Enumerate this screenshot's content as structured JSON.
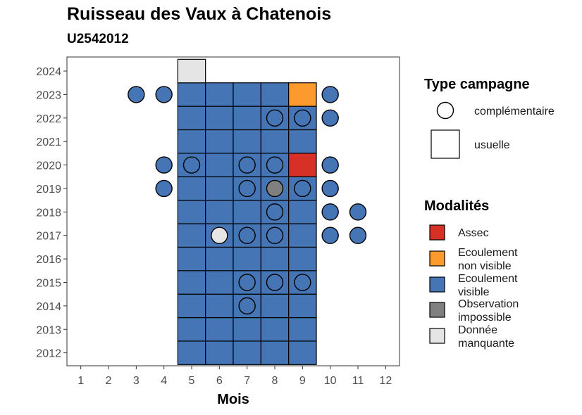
{
  "title": "Ruisseau des Vaux à Chatenois",
  "subtitle": "U2542012",
  "chart_data": {
    "type": "heatmap",
    "title": "Ruisseau des Vaux à Chatenois",
    "subtitle": "U2542012",
    "xlabel": "Mois",
    "ylabel": "",
    "x_ticks": [
      "1",
      "2",
      "3",
      "4",
      "5",
      "6",
      "7",
      "8",
      "9",
      "10",
      "11",
      "12"
    ],
    "y_ticks": [
      "2012",
      "2013",
      "2014",
      "2015",
      "2016",
      "2017",
      "2018",
      "2019",
      "2020",
      "2021",
      "2022",
      "2023",
      "2024"
    ],
    "xlim": [
      0.5,
      12.5
    ],
    "ylim": [
      2011.45,
      2024.6
    ],
    "modalities": [
      {
        "key": "assec",
        "label": "Assec",
        "color": "#d73027"
      },
      {
        "key": "ecoulement_non_visible",
        "label": "Ecoulement non visible",
        "color": "#fd9a2e"
      },
      {
        "key": "ecoulement_visible",
        "label": "Ecoulement visible",
        "color": "#4575b4"
      },
      {
        "key": "observation_impossible",
        "label": "Observation impossible",
        "color": "#808080"
      },
      {
        "key": "donnee_manquante",
        "label": "Donnée manquante",
        "color": "#e5e5e5"
      }
    ],
    "campaign_types": [
      {
        "key": "complementaire",
        "label": "complémentaire",
        "shape": "circle"
      },
      {
        "key": "usuelle",
        "label": "usuelle",
        "shape": "square"
      }
    ],
    "usuelle": [
      {
        "year": 2012,
        "month": 5,
        "m": "ecoulement_visible"
      },
      {
        "year": 2012,
        "month": 6,
        "m": "ecoulement_visible"
      },
      {
        "year": 2012,
        "month": 7,
        "m": "ecoulement_visible"
      },
      {
        "year": 2012,
        "month": 8,
        "m": "ecoulement_visible"
      },
      {
        "year": 2012,
        "month": 9,
        "m": "ecoulement_visible"
      },
      {
        "year": 2013,
        "month": 5,
        "m": "ecoulement_visible"
      },
      {
        "year": 2013,
        "month": 6,
        "m": "ecoulement_visible"
      },
      {
        "year": 2013,
        "month": 7,
        "m": "ecoulement_visible"
      },
      {
        "year": 2013,
        "month": 8,
        "m": "ecoulement_visible"
      },
      {
        "year": 2013,
        "month": 9,
        "m": "ecoulement_visible"
      },
      {
        "year": 2014,
        "month": 5,
        "m": "ecoulement_visible"
      },
      {
        "year": 2014,
        "month": 6,
        "m": "ecoulement_visible"
      },
      {
        "year": 2014,
        "month": 7,
        "m": "ecoulement_visible"
      },
      {
        "year": 2014,
        "month": 8,
        "m": "ecoulement_visible"
      },
      {
        "year": 2014,
        "month": 9,
        "m": "ecoulement_visible"
      },
      {
        "year": 2015,
        "month": 5,
        "m": "ecoulement_visible"
      },
      {
        "year": 2015,
        "month": 6,
        "m": "ecoulement_visible"
      },
      {
        "year": 2015,
        "month": 7,
        "m": "ecoulement_visible"
      },
      {
        "year": 2015,
        "month": 8,
        "m": "ecoulement_visible"
      },
      {
        "year": 2015,
        "month": 9,
        "m": "ecoulement_visible"
      },
      {
        "year": 2016,
        "month": 5,
        "m": "ecoulement_visible"
      },
      {
        "year": 2016,
        "month": 6,
        "m": "ecoulement_visible"
      },
      {
        "year": 2016,
        "month": 7,
        "m": "ecoulement_visible"
      },
      {
        "year": 2016,
        "month": 8,
        "m": "ecoulement_visible"
      },
      {
        "year": 2016,
        "month": 9,
        "m": "ecoulement_visible"
      },
      {
        "year": 2017,
        "month": 5,
        "m": "ecoulement_visible"
      },
      {
        "year": 2017,
        "month": 6,
        "m": "ecoulement_visible"
      },
      {
        "year": 2017,
        "month": 7,
        "m": "ecoulement_visible"
      },
      {
        "year": 2017,
        "month": 8,
        "m": "ecoulement_visible"
      },
      {
        "year": 2017,
        "month": 9,
        "m": "ecoulement_visible"
      },
      {
        "year": 2018,
        "month": 5,
        "m": "ecoulement_visible"
      },
      {
        "year": 2018,
        "month": 6,
        "m": "ecoulement_visible"
      },
      {
        "year": 2018,
        "month": 7,
        "m": "ecoulement_visible"
      },
      {
        "year": 2018,
        "month": 8,
        "m": "ecoulement_visible"
      },
      {
        "year": 2018,
        "month": 9,
        "m": "ecoulement_visible"
      },
      {
        "year": 2019,
        "month": 5,
        "m": "ecoulement_visible"
      },
      {
        "year": 2019,
        "month": 6,
        "m": "ecoulement_visible"
      },
      {
        "year": 2019,
        "month": 7,
        "m": "ecoulement_visible"
      },
      {
        "year": 2019,
        "month": 8,
        "m": "ecoulement_visible"
      },
      {
        "year": 2019,
        "month": 9,
        "m": "ecoulement_visible"
      },
      {
        "year": 2020,
        "month": 5,
        "m": "ecoulement_visible"
      },
      {
        "year": 2020,
        "month": 6,
        "m": "ecoulement_visible"
      },
      {
        "year": 2020,
        "month": 7,
        "m": "ecoulement_visible"
      },
      {
        "year": 2020,
        "month": 8,
        "m": "ecoulement_visible"
      },
      {
        "year": 2020,
        "month": 9,
        "m": "assec"
      },
      {
        "year": 2021,
        "month": 5,
        "m": "ecoulement_visible"
      },
      {
        "year": 2021,
        "month": 6,
        "m": "ecoulement_visible"
      },
      {
        "year": 2021,
        "month": 7,
        "m": "ecoulement_visible"
      },
      {
        "year": 2021,
        "month": 8,
        "m": "ecoulement_visible"
      },
      {
        "year": 2021,
        "month": 9,
        "m": "ecoulement_visible"
      },
      {
        "year": 2022,
        "month": 5,
        "m": "ecoulement_visible"
      },
      {
        "year": 2022,
        "month": 6,
        "m": "ecoulement_visible"
      },
      {
        "year": 2022,
        "month": 7,
        "m": "ecoulement_visible"
      },
      {
        "year": 2022,
        "month": 8,
        "m": "ecoulement_visible"
      },
      {
        "year": 2022,
        "month": 9,
        "m": "ecoulement_visible"
      },
      {
        "year": 2023,
        "month": 5,
        "m": "ecoulement_visible"
      },
      {
        "year": 2023,
        "month": 6,
        "m": "ecoulement_visible"
      },
      {
        "year": 2023,
        "month": 7,
        "m": "ecoulement_visible"
      },
      {
        "year": 2023,
        "month": 8,
        "m": "ecoulement_visible"
      },
      {
        "year": 2023,
        "month": 9,
        "m": "ecoulement_non_visible"
      },
      {
        "year": 2024,
        "month": 5,
        "m": "donnee_manquante"
      }
    ],
    "complementaire": [
      {
        "year": 2023,
        "month": 3,
        "m": "ecoulement_visible"
      },
      {
        "year": 2023,
        "month": 4,
        "m": "ecoulement_visible"
      },
      {
        "year": 2023,
        "month": 10,
        "m": "ecoulement_visible"
      },
      {
        "year": 2022,
        "month": 8,
        "m": "ecoulement_visible"
      },
      {
        "year": 2022,
        "month": 9,
        "m": "ecoulement_visible"
      },
      {
        "year": 2022,
        "month": 10,
        "m": "ecoulement_visible"
      },
      {
        "year": 2020,
        "month": 4,
        "m": "ecoulement_visible"
      },
      {
        "year": 2020,
        "month": 5,
        "m": "ecoulement_visible"
      },
      {
        "year": 2020,
        "month": 7,
        "m": "ecoulement_visible"
      },
      {
        "year": 2020,
        "month": 8,
        "m": "ecoulement_visible"
      },
      {
        "year": 2020,
        "month": 10,
        "m": "ecoulement_visible"
      },
      {
        "year": 2019,
        "month": 4,
        "m": "ecoulement_visible"
      },
      {
        "year": 2019,
        "month": 7,
        "m": "ecoulement_visible"
      },
      {
        "year": 2019,
        "month": 8,
        "m": "observation_impossible"
      },
      {
        "year": 2019,
        "month": 9,
        "m": "ecoulement_visible"
      },
      {
        "year": 2019,
        "month": 10,
        "m": "ecoulement_visible"
      },
      {
        "year": 2018,
        "month": 8,
        "m": "ecoulement_visible"
      },
      {
        "year": 2018,
        "month": 10,
        "m": "ecoulement_visible"
      },
      {
        "year": 2018,
        "month": 11,
        "m": "ecoulement_visible"
      },
      {
        "year": 2017,
        "month": 6,
        "m": "donnee_manquante"
      },
      {
        "year": 2017,
        "month": 7,
        "m": "ecoulement_visible"
      },
      {
        "year": 2017,
        "month": 8,
        "m": "ecoulement_visible"
      },
      {
        "year": 2017,
        "month": 10,
        "m": "ecoulement_visible"
      },
      {
        "year": 2017,
        "month": 11,
        "m": "ecoulement_visible"
      },
      {
        "year": 2015,
        "month": 7,
        "m": "ecoulement_visible"
      },
      {
        "year": 2015,
        "month": 8,
        "m": "ecoulement_visible"
      },
      {
        "year": 2015,
        "month": 9,
        "m": "ecoulement_visible"
      },
      {
        "year": 2014,
        "month": 7,
        "m": "ecoulement_visible"
      }
    ],
    "legend": {
      "type_title": "Type campagne",
      "modalites_title": "Modalités",
      "placement": "right"
    }
  }
}
